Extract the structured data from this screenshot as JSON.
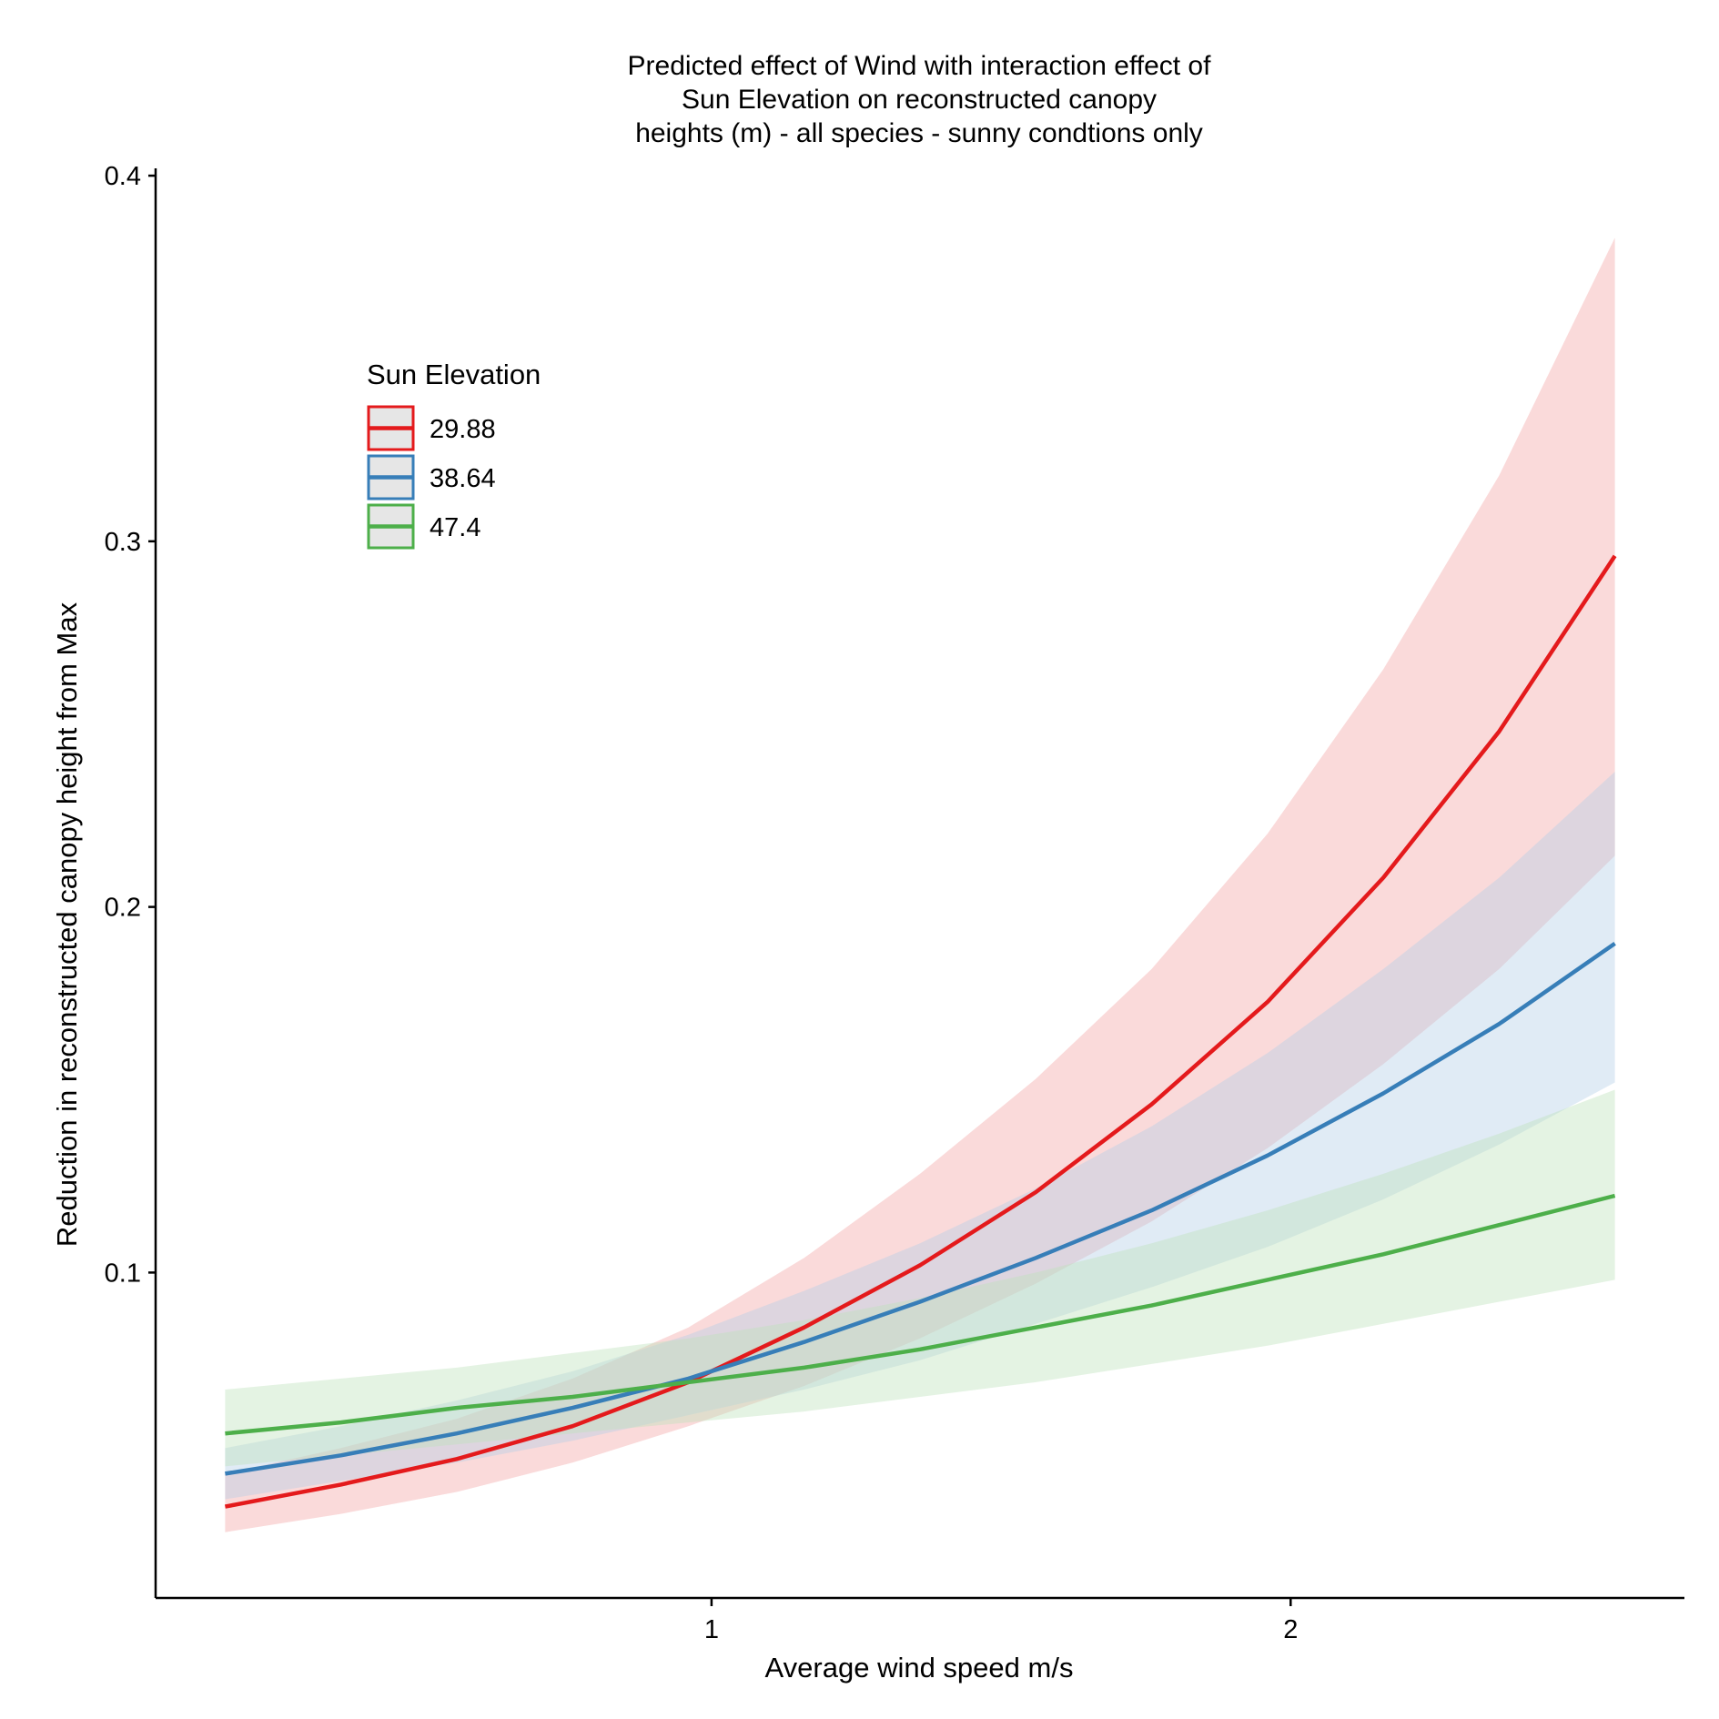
{
  "chart_data": {
    "type": "line",
    "title": [
      "Predicted effect of Wind with interaction effect of",
      "Sun Elevation on reconstructed canopy",
      "heights (m) - all species - sunny condtions only"
    ],
    "xlabel": "Average wind speed m/s",
    "ylabel": "Reduction in reconstructed canopy height from Max",
    "xlim": [
      0.04,
      2.68
    ],
    "ylim": [
      0.011,
      0.402
    ],
    "xticks": [
      1,
      2
    ],
    "xtick_labels": [
      "1",
      "2"
    ],
    "yticks": [
      0.1,
      0.2,
      0.3,
      0.4
    ],
    "ytick_labels": [
      "0.1",
      "0.2",
      "0.3",
      "0.4"
    ],
    "grid": false,
    "legend": {
      "title": "Sun Elevation",
      "placement": "top-left"
    },
    "x": [
      0.16,
      0.36,
      0.56,
      0.76,
      0.96,
      1.16,
      1.36,
      1.56,
      1.76,
      1.96,
      2.16,
      2.36,
      2.56
    ],
    "series": [
      {
        "name": "29.88",
        "color": "#e41a1c",
        "band_color": "#f4a6a8",
        "values": [
          0.036,
          0.042,
          0.049,
          0.058,
          0.07,
          0.085,
          0.102,
          0.122,
          0.146,
          0.174,
          0.208,
          0.248,
          0.296
        ],
        "lower": [
          0.029,
          0.034,
          0.04,
          0.048,
          0.058,
          0.069,
          0.082,
          0.097,
          0.114,
          0.134,
          0.157,
          0.183,
          0.214
        ],
        "upper": [
          0.045,
          0.052,
          0.06,
          0.071,
          0.085,
          0.104,
          0.127,
          0.153,
          0.183,
          0.22,
          0.265,
          0.318,
          0.383
        ]
      },
      {
        "name": "38.64",
        "color": "#377eb8",
        "band_color": "#b6cfe6",
        "values": [
          0.045,
          0.05,
          0.056,
          0.063,
          0.071,
          0.081,
          0.092,
          0.104,
          0.117,
          0.132,
          0.149,
          0.168,
          0.19
        ],
        "lower": [
          0.038,
          0.043,
          0.048,
          0.054,
          0.061,
          0.068,
          0.076,
          0.086,
          0.096,
          0.107,
          0.12,
          0.135,
          0.152
        ],
        "upper": [
          0.052,
          0.058,
          0.065,
          0.073,
          0.083,
          0.095,
          0.108,
          0.123,
          0.14,
          0.16,
          0.183,
          0.208,
          0.237
        ]
      },
      {
        "name": "47.4",
        "color": "#4daf4a",
        "band_color": "#bfe2bd",
        "values": [
          0.056,
          0.059,
          0.063,
          0.066,
          0.07,
          0.074,
          0.079,
          0.085,
          0.091,
          0.098,
          0.105,
          0.113,
          0.121
        ],
        "lower": [
          0.047,
          0.05,
          0.053,
          0.056,
          0.059,
          0.062,
          0.066,
          0.07,
          0.075,
          0.08,
          0.086,
          0.092,
          0.098
        ],
        "upper": [
          0.068,
          0.071,
          0.074,
          0.078,
          0.082,
          0.087,
          0.093,
          0.1,
          0.108,
          0.117,
          0.127,
          0.138,
          0.15
        ]
      }
    ]
  }
}
